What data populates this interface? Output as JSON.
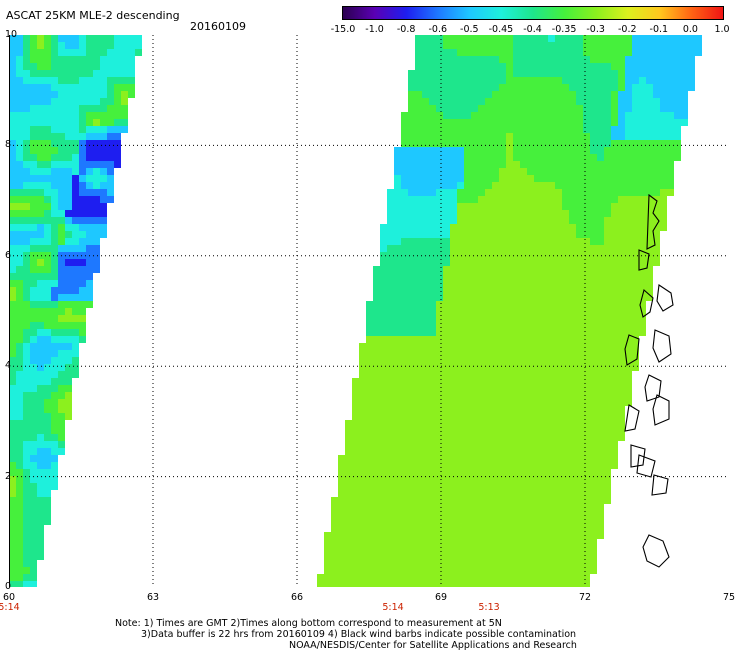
{
  "header": {
    "title": "ASCAT 25KM MLE-2 descending",
    "date": "20160109"
  },
  "colorbar": {
    "labels": [
      "-15.0",
      "-1.0",
      "-0.8",
      "-0.6",
      "-0.5",
      "-0.45",
      "-0.4",
      "-0.35",
      "-0.3",
      "-0.2",
      "-0.1",
      "0.0",
      "1.0"
    ],
    "colors": [
      "#2b0050",
      "#5a00b4",
      "#1e1ef0",
      "#1e78ff",
      "#1ec8ff",
      "#1ef0dc",
      "#1ee68c",
      "#46f03c",
      "#8cf01e",
      "#dcf01e",
      "#ffc81e",
      "#ff6414",
      "#f01414"
    ]
  },
  "axes": {
    "y_labels": [
      "10",
      "8",
      "6",
      "4",
      "2",
      "0"
    ],
    "x_labels": [
      "60",
      "63",
      "66",
      "69",
      "72",
      "75"
    ],
    "time_labels": [
      {
        "text": "5:14",
        "at": "60"
      },
      {
        "text": "5:14",
        "at": "68"
      },
      {
        "text": "5:13",
        "at": "70"
      }
    ]
  },
  "notes": {
    "line1": "Note: 1) Times are GMT 2)Times along bottom correspond to measurement at 5N",
    "line2": "3)Data buffer is 22 hrs from 20160109 4) Black wind barbs indicate possible contamination",
    "line3": "NOAA/NESDIS/Center for Satellite Applications and Research"
  }
}
